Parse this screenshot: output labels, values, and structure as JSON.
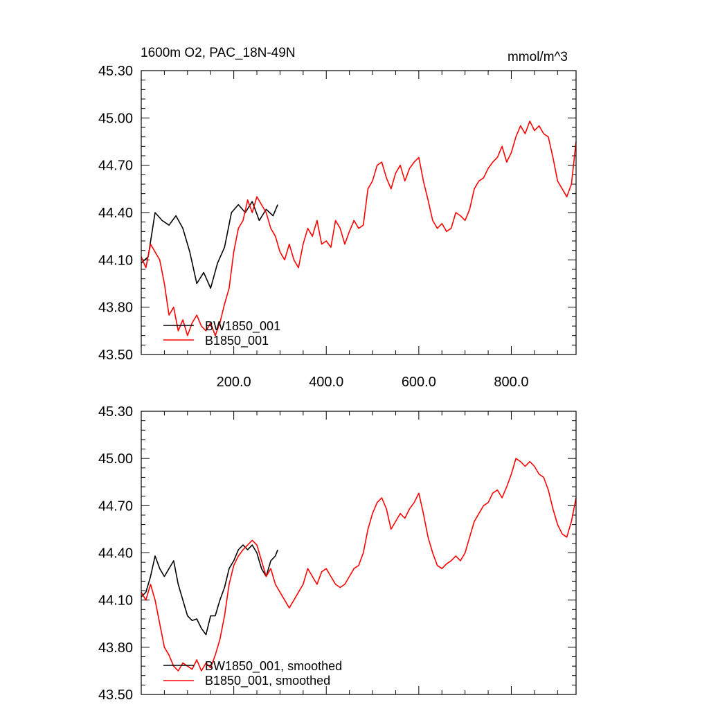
{
  "chart_data": [
    {
      "type": "line",
      "title": "1600m O2, PAC_18N-49N",
      "units": "mmol/m^3",
      "xlim": [
        0,
        940
      ],
      "ylim": [
        43.5,
        45.3
      ],
      "x_ticks": [
        200,
        400,
        600,
        800
      ],
      "x_tick_labels": [
        "200.0",
        "400.0",
        "600.0",
        "800.0"
      ],
      "y_ticks": [
        43.5,
        43.8,
        44.1,
        44.4,
        44.7,
        45.0,
        45.3
      ],
      "y_tick_labels": [
        "43.50",
        "43.80",
        "44.10",
        "44.40",
        "44.70",
        "45.00",
        "45.30"
      ],
      "legend_position": "bottom-left",
      "series": [
        {
          "name": "BW1850_001",
          "color": "#000000",
          "x": [
            0,
            15,
            30,
            45,
            60,
            75,
            90,
            105,
            120,
            135,
            150,
            165,
            180,
            195,
            210,
            225,
            240,
            255,
            270,
            285,
            295
          ],
          "y": [
            44.08,
            44.12,
            44.4,
            44.35,
            44.32,
            44.38,
            44.3,
            44.15,
            43.95,
            44.02,
            43.92,
            44.08,
            44.18,
            44.4,
            44.45,
            44.4,
            44.47,
            44.35,
            44.42,
            44.38,
            44.45
          ]
        },
        {
          "name": "B1850_001",
          "color": "#ff0000",
          "x": [
            0,
            10,
            20,
            30,
            40,
            50,
            60,
            70,
            80,
            90,
            100,
            110,
            120,
            130,
            140,
            150,
            160,
            170,
            180,
            190,
            200,
            210,
            220,
            230,
            240,
            250,
            260,
            270,
            280,
            290,
            300,
            310,
            320,
            330,
            340,
            350,
            360,
            370,
            380,
            390,
            400,
            410,
            420,
            430,
            440,
            450,
            460,
            470,
            480,
            490,
            500,
            510,
            520,
            530,
            540,
            550,
            560,
            570,
            580,
            590,
            600,
            610,
            620,
            630,
            640,
            650,
            660,
            670,
            680,
            690,
            700,
            710,
            720,
            730,
            740,
            750,
            760,
            770,
            780,
            790,
            800,
            810,
            820,
            830,
            840,
            850,
            860,
            870,
            880,
            890,
            900,
            910,
            920,
            930,
            940
          ],
          "y": [
            44.12,
            44.05,
            44.2,
            44.15,
            44.1,
            43.95,
            43.75,
            43.8,
            43.65,
            43.72,
            43.62,
            43.7,
            43.75,
            43.68,
            43.65,
            43.7,
            43.62,
            43.7,
            43.82,
            43.92,
            44.15,
            44.3,
            44.35,
            44.48,
            44.4,
            44.5,
            44.45,
            44.4,
            44.3,
            44.25,
            44.15,
            44.1,
            44.2,
            44.1,
            44.05,
            44.2,
            44.3,
            44.25,
            44.35,
            44.2,
            44.22,
            44.18,
            44.35,
            44.3,
            44.2,
            44.28,
            44.35,
            44.3,
            44.32,
            44.55,
            44.6,
            44.7,
            44.72,
            44.62,
            44.55,
            44.65,
            44.7,
            44.6,
            44.68,
            44.72,
            44.75,
            44.6,
            44.48,
            44.35,
            44.3,
            44.33,
            44.28,
            44.3,
            44.4,
            44.38,
            44.35,
            44.42,
            44.55,
            44.6,
            44.62,
            44.68,
            44.72,
            44.75,
            44.82,
            44.72,
            44.78,
            44.88,
            44.95,
            44.9,
            44.98,
            44.92,
            44.95,
            44.9,
            44.88,
            44.75,
            44.6,
            44.55,
            44.5,
            44.58,
            44.85
          ]
        }
      ]
    },
    {
      "type": "line",
      "xlim": [
        0,
        940
      ],
      "ylim": [
        43.5,
        45.3
      ],
      "y_ticks": [
        43.5,
        43.8,
        44.1,
        44.4,
        44.7,
        45.0,
        45.3
      ],
      "y_tick_labels": [
        "43.50",
        "43.80",
        "44.10",
        "44.40",
        "44.70",
        "45.00",
        "45.30"
      ],
      "legend_position": "bottom-left",
      "series": [
        {
          "name": "BW1850_001, smoothed",
          "color": "#000000",
          "x": [
            0,
            10,
            20,
            30,
            40,
            50,
            60,
            70,
            80,
            90,
            100,
            110,
            120,
            130,
            140,
            150,
            160,
            170,
            180,
            190,
            200,
            210,
            220,
            230,
            240,
            250,
            260,
            270,
            280,
            290,
            295
          ],
          "y": [
            44.12,
            44.15,
            44.25,
            44.38,
            44.3,
            44.25,
            44.3,
            44.35,
            44.2,
            44.1,
            44.0,
            43.97,
            43.98,
            43.92,
            43.88,
            44.0,
            44.0,
            44.1,
            44.18,
            44.3,
            44.35,
            44.42,
            44.45,
            44.42,
            44.45,
            44.4,
            44.3,
            44.25,
            44.35,
            44.38,
            44.42
          ]
        },
        {
          "name": "B1850_001, smoothed",
          "color": "#ff0000",
          "x": [
            0,
            10,
            20,
            30,
            40,
            50,
            60,
            70,
            80,
            90,
            100,
            110,
            120,
            130,
            140,
            150,
            160,
            170,
            180,
            190,
            200,
            210,
            220,
            230,
            240,
            250,
            260,
            270,
            280,
            290,
            300,
            310,
            320,
            330,
            340,
            350,
            360,
            370,
            380,
            390,
            400,
            410,
            420,
            430,
            440,
            450,
            460,
            470,
            480,
            490,
            500,
            510,
            520,
            530,
            540,
            550,
            560,
            570,
            580,
            590,
            600,
            610,
            620,
            630,
            640,
            650,
            660,
            670,
            680,
            690,
            700,
            710,
            720,
            730,
            740,
            750,
            760,
            770,
            780,
            790,
            800,
            810,
            820,
            830,
            840,
            850,
            860,
            870,
            880,
            890,
            900,
            910,
            920,
            930,
            940
          ],
          "y": [
            44.15,
            44.1,
            44.2,
            44.1,
            43.95,
            43.8,
            43.75,
            43.68,
            43.65,
            43.7,
            43.68,
            43.66,
            43.72,
            43.65,
            43.7,
            43.67,
            43.75,
            43.85,
            44.0,
            44.2,
            44.32,
            44.38,
            44.42,
            44.45,
            44.48,
            44.45,
            44.35,
            44.25,
            44.3,
            44.2,
            44.15,
            44.1,
            44.05,
            44.1,
            44.15,
            44.2,
            44.3,
            44.25,
            44.2,
            44.28,
            44.3,
            44.25,
            44.2,
            44.18,
            44.2,
            44.25,
            44.3,
            44.32,
            44.4,
            44.55,
            44.65,
            44.72,
            44.75,
            44.68,
            44.55,
            44.6,
            44.65,
            44.62,
            44.68,
            44.72,
            44.78,
            44.65,
            44.5,
            44.4,
            44.32,
            44.3,
            44.33,
            44.35,
            44.38,
            44.35,
            44.4,
            44.5,
            44.6,
            44.65,
            44.7,
            44.72,
            44.78,
            44.8,
            44.75,
            44.82,
            44.9,
            45.0,
            44.98,
            44.95,
            44.98,
            44.95,
            44.9,
            44.88,
            44.8,
            44.68,
            44.58,
            44.52,
            44.5,
            44.6,
            44.75
          ]
        }
      ]
    }
  ]
}
